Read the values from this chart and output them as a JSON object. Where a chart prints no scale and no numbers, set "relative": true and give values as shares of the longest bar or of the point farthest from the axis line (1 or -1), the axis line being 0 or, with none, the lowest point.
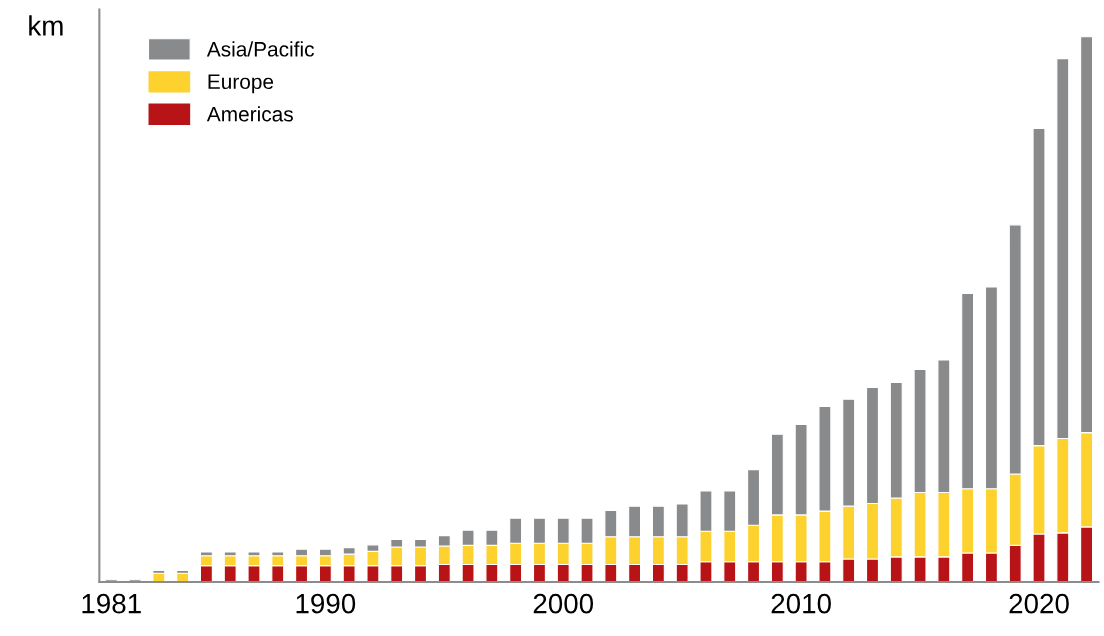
{
  "chart_data": {
    "type": "bar",
    "stacked": true,
    "relative": true,
    "ylabel": "km",
    "legend": "top left",
    "grid": false,
    "categories": [
      "1981",
      null,
      null,
      null,
      null,
      null,
      null,
      null,
      null,
      "1990",
      null,
      null,
      null,
      null,
      null,
      null,
      null,
      null,
      null,
      "2000",
      null,
      null,
      null,
      null,
      null,
      null,
      null,
      null,
      null,
      "2010",
      null,
      null,
      null,
      null,
      null,
      null,
      null,
      null,
      null,
      "2020",
      null,
      null
    ],
    "series": [
      {
        "name": "Americas",
        "color": "#b81418",
        "values": [
          0,
          0,
          0,
          0,
          0.03,
          0.03,
          0.03,
          0.03,
          0.03,
          0.03,
          0.03,
          0.03,
          0.03,
          0.03,
          0.032,
          0.032,
          0.032,
          0.032,
          0.032,
          0.032,
          0.032,
          0.032,
          0.032,
          0.032,
          0.032,
          0.037,
          0.037,
          0.037,
          0.037,
          0.037,
          0.037,
          0.042,
          0.042,
          0.046,
          0.046,
          0.046,
          0.053,
          0.053,
          0.067,
          0.088,
          0.09,
          0.101
        ]
      },
      {
        "name": "Europe",
        "color": "#fdd12e",
        "values": [
          0,
          0,
          0.016,
          0.016,
          0.018,
          0.018,
          0.018,
          0.018,
          0.018,
          0.018,
          0.021,
          0.026,
          0.034,
          0.034,
          0.034,
          0.035,
          0.035,
          0.039,
          0.039,
          0.039,
          0.039,
          0.051,
          0.051,
          0.051,
          0.051,
          0.056,
          0.056,
          0.067,
          0.086,
          0.086,
          0.093,
          0.097,
          0.102,
          0.108,
          0.118,
          0.118,
          0.118,
          0.118,
          0.131,
          0.162,
          0.173,
          0.173
        ]
      },
      {
        "name": "Asia/Pacific",
        "color": "#898a8c",
        "values": [
          0.004,
          0.004,
          0.005,
          0.005,
          0.007,
          0.007,
          0.007,
          0.007,
          0.012,
          0.012,
          0.012,
          0.012,
          0.014,
          0.014,
          0.019,
          0.028,
          0.028,
          0.046,
          0.046,
          0.046,
          0.046,
          0.048,
          0.056,
          0.056,
          0.06,
          0.074,
          0.074,
          0.102,
          0.148,
          0.166,
          0.192,
          0.196,
          0.213,
          0.212,
          0.226,
          0.243,
          0.358,
          0.37,
          0.457,
          0.582,
          0.697,
          0.726
        ]
      }
    ]
  }
}
